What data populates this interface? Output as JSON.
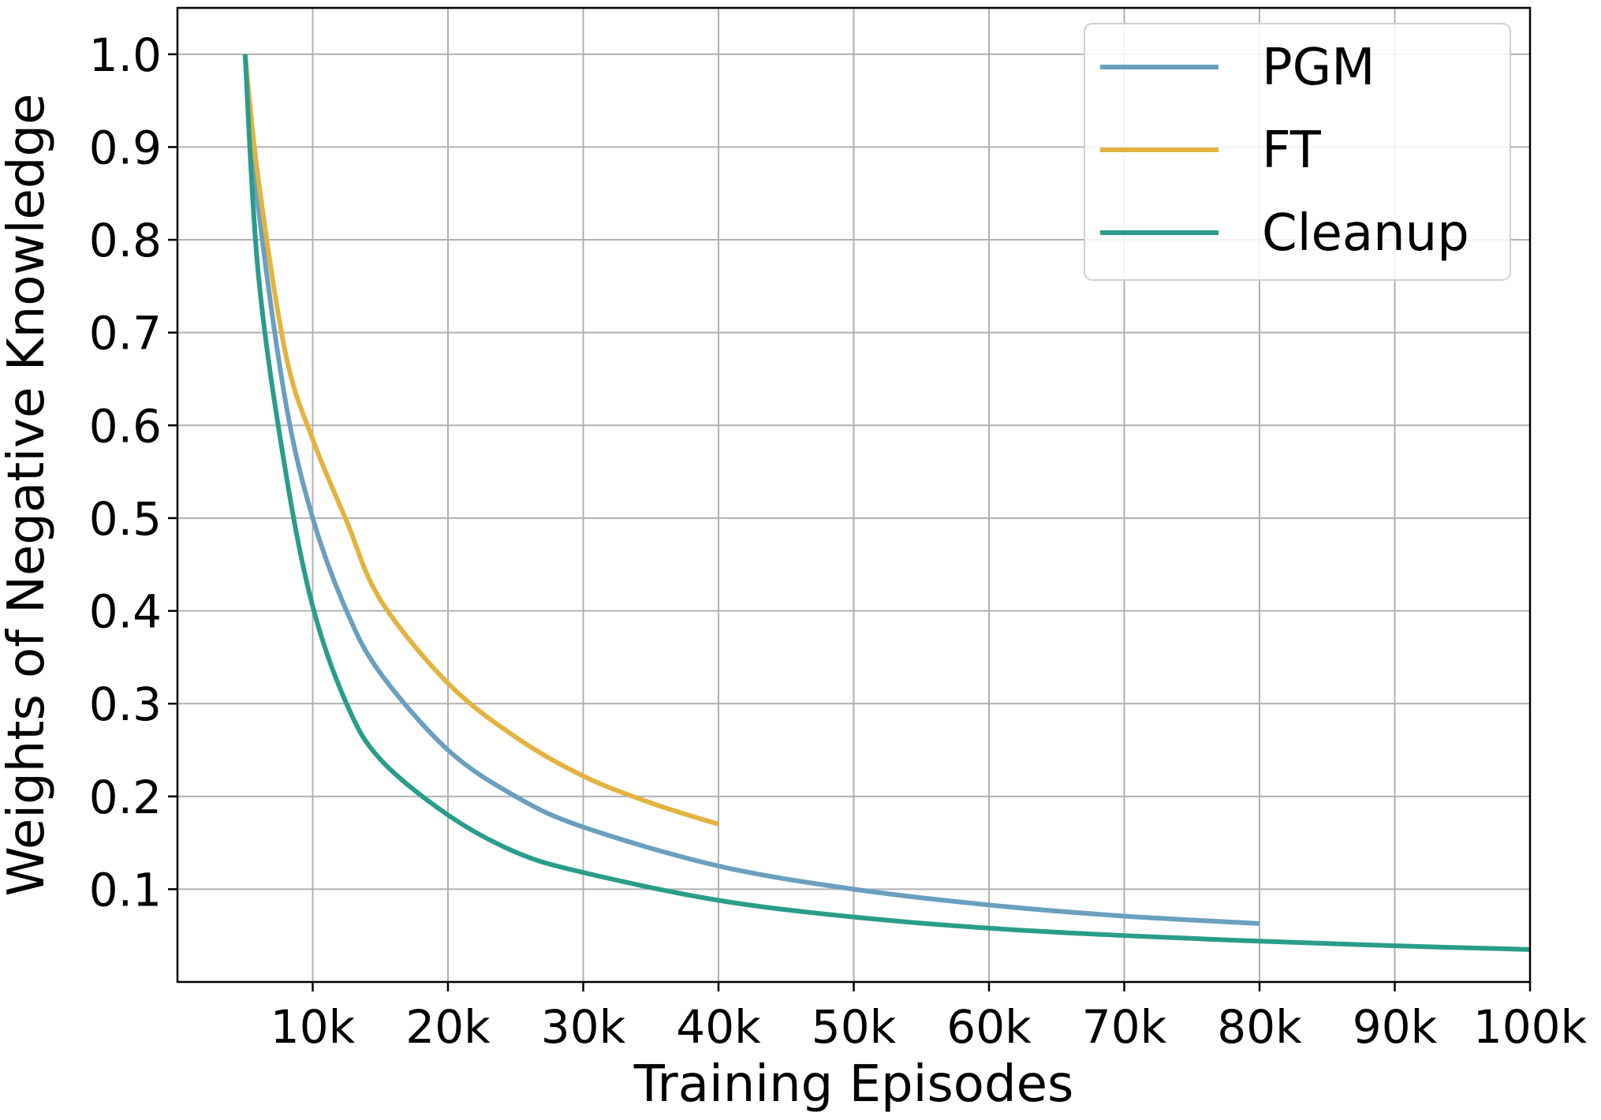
{
  "chart_data": {
    "type": "line",
    "xlabel": "Training Episodes",
    "ylabel": "Weights of Negative Knowledge",
    "xlim": [
      0,
      100000
    ],
    "ylim": [
      0.0,
      1.05
    ],
    "x_ticks": [
      10000,
      20000,
      30000,
      40000,
      50000,
      60000,
      70000,
      80000,
      90000,
      100000
    ],
    "x_tick_labels": [
      "10k",
      "20k",
      "30k",
      "40k",
      "50k",
      "60k",
      "70k",
      "80k",
      "90k",
      "100k"
    ],
    "y_ticks": [
      0.1,
      0.2,
      0.3,
      0.4,
      0.5,
      0.6,
      0.7,
      0.8,
      0.9,
      1.0
    ],
    "y_tick_labels": [
      "0.1",
      "0.2",
      "0.3",
      "0.4",
      "0.5",
      "0.6",
      "0.7",
      "0.8",
      "0.9",
      "1.0"
    ],
    "grid": true,
    "legend_position": "top-right",
    "series": [
      {
        "name": "PGM",
        "color": "#6a9fbf",
        "x": [
          5000,
          6000,
          8000,
          10000,
          12500,
          15000,
          20000,
          25000,
          30000,
          40000,
          50000,
          60000,
          70000,
          80000
        ],
        "y": [
          1.0,
          0.833,
          0.625,
          0.5,
          0.4,
          0.333,
          0.25,
          0.2,
          0.167,
          0.125,
          0.1,
          0.083,
          0.071,
          0.063
        ]
      },
      {
        "name": "FT",
        "color": "#e3b341",
        "x": [
          5000,
          6000,
          8000,
          10000,
          12500,
          15000,
          20000,
          25000,
          30000,
          35000,
          40000
        ],
        "y": [
          1.0,
          0.863,
          0.677,
          0.585,
          0.497,
          0.412,
          0.322,
          0.264,
          0.222,
          0.193,
          0.17
        ]
      },
      {
        "name": "Cleanup",
        "color": "#2a9d8a",
        "x": [
          5000,
          6000,
          8000,
          10000,
          12500,
          15000,
          20000,
          25000,
          30000,
          40000,
          50000,
          60000,
          70000,
          80000,
          90000,
          100000
        ],
        "y": [
          1.0,
          0.76,
          0.55,
          0.405,
          0.3,
          0.24,
          0.18,
          0.14,
          0.118,
          0.088,
          0.07,
          0.058,
          0.05,
          0.044,
          0.039,
          0.035
        ]
      }
    ]
  }
}
